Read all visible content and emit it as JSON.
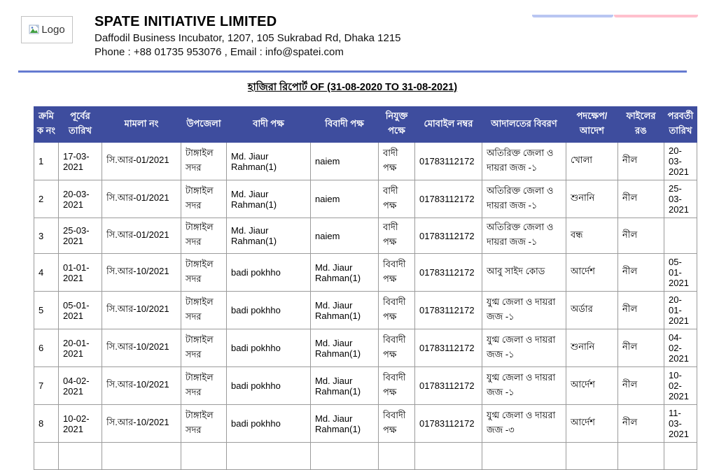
{
  "top_buttons": [
    {
      "name": "blue-bar",
      "color": "#b9c6f2"
    },
    {
      "name": "pink-bar",
      "color": "#ffc0cd"
    }
  ],
  "header": {
    "logo_alt": "Logo",
    "company_name": "SPATE INITIATIVE LIMITED",
    "address_line": "Daffodil Business Incubator, 1207, 105 Sukrabad Rd, Dhaka 1215",
    "contact_line": "Phone : +88 01735 953076 , Email : info@spatei.com"
  },
  "report_title": "হাজিরা রিপোর্ট OF (31-08-2020 TO 31-08-2021)",
  "table": {
    "columns": [
      "ক্রমিক নং",
      "পূর্বের তারিখ",
      "মামলা নং",
      "উপজেলা",
      "বাদী পক্ষ",
      "বিবাদী পক্ষ",
      "নিযুক্ত পক্ষে",
      "মোবাইল নম্বর",
      "আদালতের বিবরণ",
      "পদক্ষেপ/ আদেশ",
      "ফাইলের রঙ",
      "পরবর্তী তারিখ"
    ],
    "rows": [
      [
        "1",
        "17-03-2021",
        "সি.আর-01/2021",
        "টাঙ্গাইল সদর",
        "Md. Jiaur Rahman(1)",
        "naiem",
        "বাদী পক্ষ",
        "01783112172",
        "অতিরিক্ত জেলা ও দায়রা জজ -১",
        "খোলা",
        "নীল",
        "20-03-2021"
      ],
      [
        "2",
        "20-03-2021",
        "সি.আর-01/2021",
        "টাঙ্গাইল সদর",
        "Md. Jiaur Rahman(1)",
        "naiem",
        "বাদী পক্ষ",
        "01783112172",
        "অতিরিক্ত জেলা ও দায়রা জজ -১",
        "শুনানি",
        "নীল",
        "25-03-2021"
      ],
      [
        "3",
        "25-03-2021",
        "সি.আর-01/2021",
        "টাঙ্গাইল সদর",
        "Md. Jiaur Rahman(1)",
        "naiem",
        "বাদী পক্ষ",
        "01783112172",
        "অতিরিক্ত জেলা ও দায়রা জজ -১",
        "বন্ধ",
        "নীল",
        ""
      ],
      [
        "4",
        "01-01-2021",
        "সি.আর-10/2021",
        "টাঙ্গাইল সদর",
        "badi pokhho",
        "Md. Jiaur Rahman(1)",
        "বিবাদী পক্ষ",
        "01783112172",
        "আবু সাইদ কোড",
        "আর্দেশ",
        "নীল",
        "05-01-2021"
      ],
      [
        "5",
        "05-01-2021",
        "সি.আর-10/2021",
        "টাঙ্গাইল সদর",
        "badi pokhho",
        "Md. Jiaur Rahman(1)",
        "বিবাদী পক্ষ",
        "01783112172",
        "যুগ্ম জেলা ও দায়রা জজ -১",
        "অর্ডার",
        "নীল",
        "20-01-2021"
      ],
      [
        "6",
        "20-01-2021",
        "সি.আর-10/2021",
        "টাঙ্গাইল সদর",
        "badi pokhho",
        "Md. Jiaur Rahman(1)",
        "বিবাদী পক্ষ",
        "01783112172",
        "যুগ্ম জেলা ও দায়রা জজ -১",
        "শুনানি",
        "নীল",
        "04-02-2021"
      ],
      [
        "7",
        "04-02-2021",
        "সি.আর-10/2021",
        "টাঙ্গাইল সদর",
        "badi pokhho",
        "Md. Jiaur Rahman(1)",
        "বিবাদী পক্ষ",
        "01783112172",
        "যুগ্ম জেলা ও দায়রা জজ -১",
        "আর্দেশ",
        "নীল",
        "10-02-2021"
      ],
      [
        "8",
        "10-02-2021",
        "সি.আর-10/2021",
        "টাঙ্গাইল সদর",
        "badi pokhho",
        "Md. Jiaur Rahman(1)",
        "বিবাদী পক্ষ",
        "01783112172",
        "যুগ্ম জেলা ও দায়রা জজ -৩",
        "আর্দেশ",
        "নীল",
        "11-03-2021"
      ]
    ]
  },
  "colors": {
    "header_bg": "#3e4d9e",
    "table_border": "#9b9b9b",
    "divider_blue": "#3348b5"
  }
}
